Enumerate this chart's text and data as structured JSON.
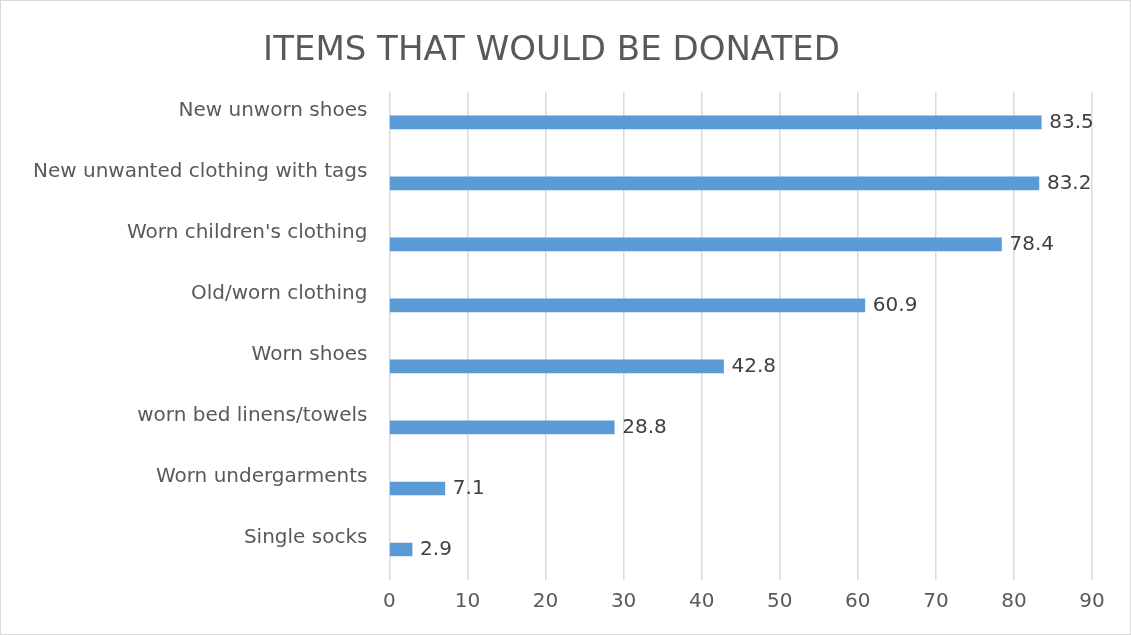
{
  "chart_data": {
    "type": "bar",
    "orientation": "horizontal",
    "title": "ITEMS THAT WOULD BE DONATED",
    "categories": [
      "New unworn shoes",
      "New unwanted clothing with tags",
      "Worn children's clothing",
      "Old/worn clothing",
      "Worn shoes",
      "worn bed linens/towels",
      "Worn undergarments",
      "Single socks"
    ],
    "values": [
      83.5,
      83.2,
      78.4,
      60.9,
      42.8,
      28.8,
      7.1,
      2.9
    ],
    "color": "#5b9bd5",
    "xlim": [
      0,
      90
    ],
    "xticks": [
      0,
      10,
      20,
      30,
      40,
      50,
      60,
      70,
      80,
      90
    ],
    "grid": "x",
    "data_labels": true,
    "legend": false
  }
}
